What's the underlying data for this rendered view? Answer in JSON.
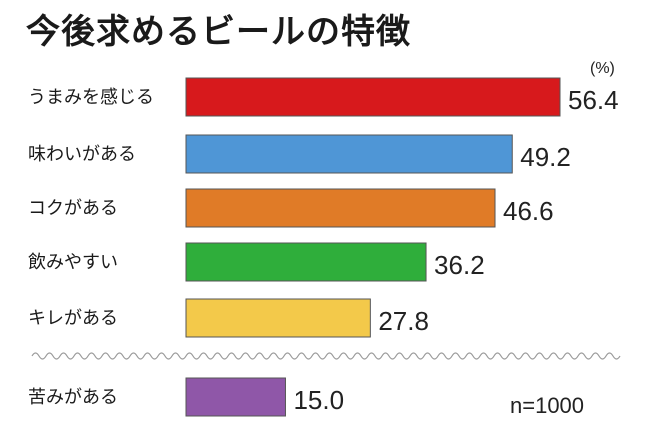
{
  "chart_data": {
    "type": "bar",
    "orientation": "horizontal",
    "title": "今後求めるビールの特徴",
    "unit_label": "(%)",
    "sample_label": "n=1000",
    "categories": [
      "うまみを感じる",
      "味わいがある",
      "コクがある",
      "飲みやすい",
      "キレがある",
      "苦みがある"
    ],
    "values": [
      56.4,
      49.2,
      46.6,
      36.2,
      27.8,
      15.0
    ],
    "value_labels": [
      "56.4",
      "49.2",
      "46.6",
      "36.2",
      "27.8",
      "15.0"
    ],
    "colors": [
      "#d7191c",
      "#4f96d6",
      "#e07b27",
      "#2fae3b",
      "#f3c94a",
      "#8f57a8"
    ],
    "xlim": [
      0,
      56.4
    ],
    "grid": false,
    "legend": "none",
    "separator_after_index": 4
  }
}
